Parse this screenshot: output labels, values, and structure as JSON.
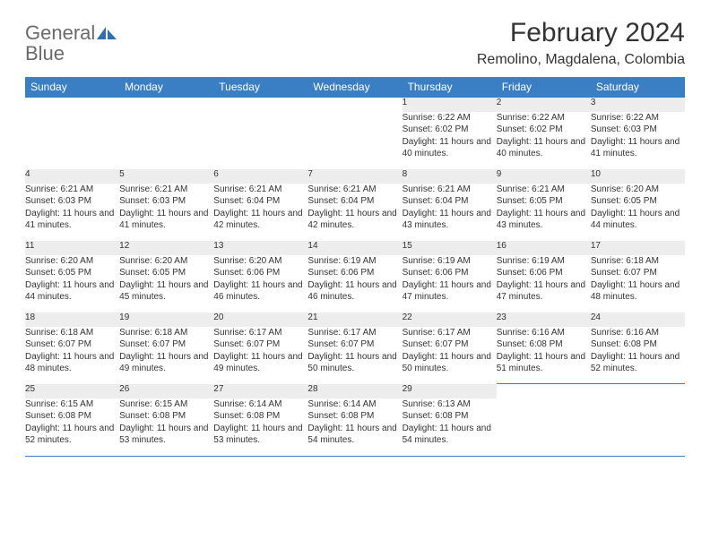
{
  "logo": {
    "text_gray": "General",
    "text_blue": "Blue",
    "icon_color": "#2f6fb0"
  },
  "header": {
    "month_title": "February 2024",
    "location": "Remolino, Magdalena, Colombia"
  },
  "colors": {
    "header_bg": "#3a7fc4",
    "header_text": "#ffffff",
    "daynum_bg": "#ededed",
    "rule": "#3a7fc4",
    "body_text": "#333333"
  },
  "day_labels": [
    "Sunday",
    "Monday",
    "Tuesday",
    "Wednesday",
    "Thursday",
    "Friday",
    "Saturday"
  ],
  "weeks": [
    [
      null,
      null,
      null,
      null,
      {
        "n": "1",
        "sunrise": "6:22 AM",
        "sunset": "6:02 PM",
        "daylight": "11 hours and 40 minutes."
      },
      {
        "n": "2",
        "sunrise": "6:22 AM",
        "sunset": "6:02 PM",
        "daylight": "11 hours and 40 minutes."
      },
      {
        "n": "3",
        "sunrise": "6:22 AM",
        "sunset": "6:03 PM",
        "daylight": "11 hours and 41 minutes."
      }
    ],
    [
      {
        "n": "4",
        "sunrise": "6:21 AM",
        "sunset": "6:03 PM",
        "daylight": "11 hours and 41 minutes."
      },
      {
        "n": "5",
        "sunrise": "6:21 AM",
        "sunset": "6:03 PM",
        "daylight": "11 hours and 41 minutes."
      },
      {
        "n": "6",
        "sunrise": "6:21 AM",
        "sunset": "6:04 PM",
        "daylight": "11 hours and 42 minutes."
      },
      {
        "n": "7",
        "sunrise": "6:21 AM",
        "sunset": "6:04 PM",
        "daylight": "11 hours and 42 minutes."
      },
      {
        "n": "8",
        "sunrise": "6:21 AM",
        "sunset": "6:04 PM",
        "daylight": "11 hours and 43 minutes."
      },
      {
        "n": "9",
        "sunrise": "6:21 AM",
        "sunset": "6:05 PM",
        "daylight": "11 hours and 43 minutes."
      },
      {
        "n": "10",
        "sunrise": "6:20 AM",
        "sunset": "6:05 PM",
        "daylight": "11 hours and 44 minutes."
      }
    ],
    [
      {
        "n": "11",
        "sunrise": "6:20 AM",
        "sunset": "6:05 PM",
        "daylight": "11 hours and 44 minutes."
      },
      {
        "n": "12",
        "sunrise": "6:20 AM",
        "sunset": "6:05 PM",
        "daylight": "11 hours and 45 minutes."
      },
      {
        "n": "13",
        "sunrise": "6:20 AM",
        "sunset": "6:06 PM",
        "daylight": "11 hours and 46 minutes."
      },
      {
        "n": "14",
        "sunrise": "6:19 AM",
        "sunset": "6:06 PM",
        "daylight": "11 hours and 46 minutes."
      },
      {
        "n": "15",
        "sunrise": "6:19 AM",
        "sunset": "6:06 PM",
        "daylight": "11 hours and 47 minutes."
      },
      {
        "n": "16",
        "sunrise": "6:19 AM",
        "sunset": "6:06 PM",
        "daylight": "11 hours and 47 minutes."
      },
      {
        "n": "17",
        "sunrise": "6:18 AM",
        "sunset": "6:07 PM",
        "daylight": "11 hours and 48 minutes."
      }
    ],
    [
      {
        "n": "18",
        "sunrise": "6:18 AM",
        "sunset": "6:07 PM",
        "daylight": "11 hours and 48 minutes."
      },
      {
        "n": "19",
        "sunrise": "6:18 AM",
        "sunset": "6:07 PM",
        "daylight": "11 hours and 49 minutes."
      },
      {
        "n": "20",
        "sunrise": "6:17 AM",
        "sunset": "6:07 PM",
        "daylight": "11 hours and 49 minutes."
      },
      {
        "n": "21",
        "sunrise": "6:17 AM",
        "sunset": "6:07 PM",
        "daylight": "11 hours and 50 minutes."
      },
      {
        "n": "22",
        "sunrise": "6:17 AM",
        "sunset": "6:07 PM",
        "daylight": "11 hours and 50 minutes."
      },
      {
        "n": "23",
        "sunrise": "6:16 AM",
        "sunset": "6:08 PM",
        "daylight": "11 hours and 51 minutes."
      },
      {
        "n": "24",
        "sunrise": "6:16 AM",
        "sunset": "6:08 PM",
        "daylight": "11 hours and 52 minutes."
      }
    ],
    [
      {
        "n": "25",
        "sunrise": "6:15 AM",
        "sunset": "6:08 PM",
        "daylight": "11 hours and 52 minutes."
      },
      {
        "n": "26",
        "sunrise": "6:15 AM",
        "sunset": "6:08 PM",
        "daylight": "11 hours and 53 minutes."
      },
      {
        "n": "27",
        "sunrise": "6:14 AM",
        "sunset": "6:08 PM",
        "daylight": "11 hours and 53 minutes."
      },
      {
        "n": "28",
        "sunrise": "6:14 AM",
        "sunset": "6:08 PM",
        "daylight": "11 hours and 54 minutes."
      },
      {
        "n": "29",
        "sunrise": "6:13 AM",
        "sunset": "6:08 PM",
        "daylight": "11 hours and 54 minutes."
      },
      null,
      null
    ]
  ],
  "cell_labels": {
    "sunrise_prefix": "Sunrise: ",
    "sunset_prefix": "Sunset: ",
    "daylight_prefix": "Daylight: "
  }
}
